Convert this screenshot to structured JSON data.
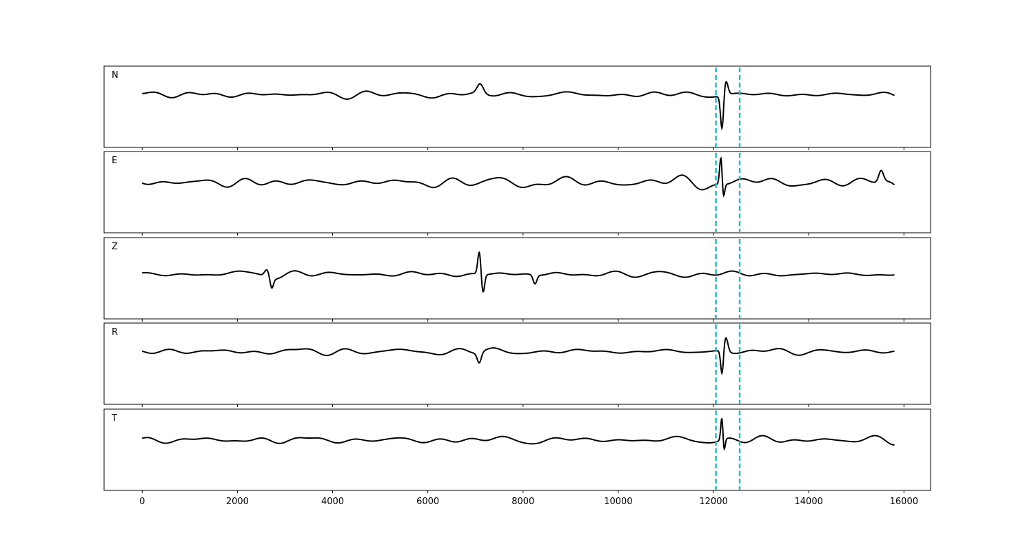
{
  "chart_data": {
    "type": "line",
    "xlim": [
      -800,
      16560
    ],
    "x_ticks": [
      0,
      2000,
      4000,
      6000,
      8000,
      10000,
      12000,
      14000,
      16000
    ],
    "tick_labels": [
      "0",
      "2000",
      "4000",
      "6000",
      "8000",
      "10000",
      "12000",
      "14000",
      "16000"
    ],
    "x_range": [
      0,
      15800
    ],
    "grid": false,
    "line_color": "#000000",
    "marker_color": "#17becf",
    "markers": [
      12050,
      12550
    ],
    "panels": [
      {
        "label": "N",
        "baseline": 0.65,
        "noise": 0.09,
        "seed": 11,
        "events": [
          {
            "x": 7100,
            "amp": 0.22,
            "width": 90
          },
          {
            "x": 12180,
            "amp": -0.85,
            "width": 45
          },
          {
            "x": 12260,
            "amp": 0.35,
            "width": 60
          }
        ]
      },
      {
        "label": "E",
        "baseline": 0.62,
        "noise": 0.16,
        "seed": 23,
        "events": [
          {
            "x": 12160,
            "amp": 0.78,
            "width": 40
          },
          {
            "x": 12200,
            "amp": -0.45,
            "width": 40
          },
          {
            "x": 15520,
            "amp": 0.28,
            "width": 70
          }
        ]
      },
      {
        "label": "Z",
        "baseline": 0.55,
        "noise": 0.08,
        "seed": 37,
        "events": [
          {
            "x": 2620,
            "amp": 0.18,
            "width": 70
          },
          {
            "x": 2720,
            "amp": -0.25,
            "width": 50
          },
          {
            "x": 7080,
            "amp": 0.55,
            "width": 45
          },
          {
            "x": 7160,
            "amp": -0.45,
            "width": 45
          },
          {
            "x": 8250,
            "amp": -0.22,
            "width": 55
          }
        ]
      },
      {
        "label": "R",
        "baseline": 0.65,
        "noise": 0.09,
        "seed": 51,
        "events": [
          {
            "x": 7080,
            "amp": -0.25,
            "width": 60
          },
          {
            "x": 12180,
            "amp": -0.6,
            "width": 40
          },
          {
            "x": 12260,
            "amp": 0.35,
            "width": 60
          }
        ]
      },
      {
        "label": "T",
        "baseline": 0.62,
        "noise": 0.11,
        "seed": 67,
        "events": [
          {
            "x": 12180,
            "amp": 0.65,
            "width": 35
          },
          {
            "x": 12215,
            "amp": -0.4,
            "width": 35
          }
        ]
      }
    ]
  }
}
